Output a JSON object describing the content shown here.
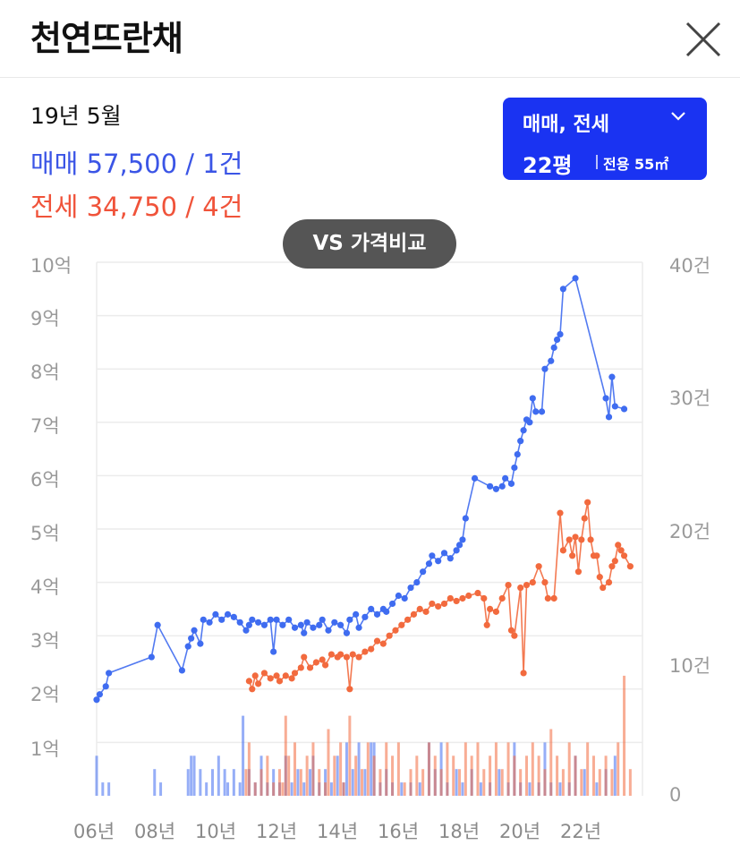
{
  "header": {
    "title": "천연뜨란채"
  },
  "info": {
    "date": "19년 5월",
    "sale": "매매 57,500 / 1건",
    "jeonse": "전세 34,750 / 4건"
  },
  "selector": {
    "type": "매매, 전세",
    "size": "22평",
    "area": "전용 55㎡"
  },
  "vs_button": "VS 가격비교",
  "colors": {
    "sale": "#3f6cf0",
    "jeonse": "#f26a3e",
    "accent": "#1a33f2"
  },
  "icons": {
    "close": "close-icon",
    "chevron": "chevron-down-icon"
  },
  "chart_data": {
    "type": "line",
    "x_tick_labels": [
      "06년",
      "08년",
      "10년",
      "12년",
      "14년",
      "16년",
      "18년",
      "20년",
      "22년"
    ],
    "y_left_ticks": [
      "10억",
      "9억",
      "8억",
      "7억",
      "6억",
      "5억",
      "4억",
      "3억",
      "2억",
      "1억"
    ],
    "y_right_ticks": [
      "40건",
      "30건",
      "20건",
      "10건",
      "0"
    ],
    "y_left_range": [
      0,
      10
    ],
    "y_right_range": [
      0,
      40
    ],
    "grid": true,
    "series": [
      {
        "key": "sale",
        "kind": "line",
        "points": [
          [
            2006.0,
            1.8
          ],
          [
            2006.1,
            1.9
          ],
          [
            2006.3,
            2.05
          ],
          [
            2006.4,
            2.3
          ],
          [
            2007.8,
            2.6
          ],
          [
            2008.0,
            3.2
          ],
          [
            2008.8,
            2.35
          ],
          [
            2009.0,
            2.8
          ],
          [
            2009.1,
            2.95
          ],
          [
            2009.2,
            3.1
          ],
          [
            2009.4,
            2.85
          ],
          [
            2009.5,
            3.3
          ],
          [
            2009.7,
            3.25
          ],
          [
            2009.9,
            3.4
          ],
          [
            2010.1,
            3.3
          ],
          [
            2010.3,
            3.4
          ],
          [
            2010.5,
            3.35
          ],
          [
            2010.7,
            3.25
          ],
          [
            2010.9,
            3.1
          ],
          [
            2011.0,
            3.2
          ],
          [
            2011.1,
            3.3
          ],
          [
            2011.3,
            3.25
          ],
          [
            2011.5,
            3.2
          ],
          [
            2011.7,
            3.3
          ],
          [
            2011.8,
            2.7
          ],
          [
            2011.9,
            3.3
          ],
          [
            2012.1,
            3.2
          ],
          [
            2012.3,
            3.3
          ],
          [
            2012.5,
            3.15
          ],
          [
            2012.7,
            3.2
          ],
          [
            2012.8,
            3.05
          ],
          [
            2012.9,
            3.25
          ],
          [
            2013.1,
            3.15
          ],
          [
            2013.3,
            3.2
          ],
          [
            2013.4,
            3.3
          ],
          [
            2013.6,
            3.1
          ],
          [
            2013.8,
            3.25
          ],
          [
            2014.0,
            3.2
          ],
          [
            2014.2,
            3.05
          ],
          [
            2014.3,
            3.3
          ],
          [
            2014.5,
            3.4
          ],
          [
            2014.6,
            3.15
          ],
          [
            2014.8,
            3.35
          ],
          [
            2015.0,
            3.5
          ],
          [
            2015.2,
            3.4
          ],
          [
            2015.4,
            3.5
          ],
          [
            2015.5,
            3.45
          ],
          [
            2015.7,
            3.6
          ],
          [
            2015.9,
            3.75
          ],
          [
            2016.1,
            3.7
          ],
          [
            2016.3,
            3.9
          ],
          [
            2016.5,
            4.0
          ],
          [
            2016.7,
            4.2
          ],
          [
            2016.9,
            4.35
          ],
          [
            2017.0,
            4.5
          ],
          [
            2017.2,
            4.4
          ],
          [
            2017.4,
            4.55
          ],
          [
            2017.6,
            4.45
          ],
          [
            2017.8,
            4.6
          ],
          [
            2017.9,
            4.7
          ],
          [
            2018.0,
            4.8
          ],
          [
            2018.1,
            5.2
          ],
          [
            2018.4,
            5.95
          ],
          [
            2018.9,
            5.8
          ],
          [
            2019.1,
            5.75
          ],
          [
            2019.3,
            5.8
          ],
          [
            2019.4,
            5.95
          ],
          [
            2019.6,
            5.85
          ],
          [
            2019.7,
            6.15
          ],
          [
            2019.8,
            6.4
          ],
          [
            2019.9,
            6.65
          ],
          [
            2020.0,
            6.85
          ],
          [
            2020.1,
            7.05
          ],
          [
            2020.2,
            7.0
          ],
          [
            2020.3,
            7.45
          ],
          [
            2020.4,
            7.2
          ],
          [
            2020.6,
            7.2
          ],
          [
            2020.7,
            8.0
          ],
          [
            2020.9,
            8.15
          ],
          [
            2021.0,
            8.4
          ],
          [
            2021.1,
            8.55
          ],
          [
            2021.2,
            8.65
          ],
          [
            2021.3,
            9.5
          ],
          [
            2021.7,
            9.7
          ],
          [
            2022.7,
            7.45
          ],
          [
            2022.8,
            7.1
          ],
          [
            2022.9,
            7.85
          ],
          [
            2023.0,
            7.3
          ],
          [
            2023.3,
            7.25
          ]
        ]
      },
      {
        "key": "jeonse",
        "kind": "line",
        "points": [
          [
            2011.0,
            2.15
          ],
          [
            2011.1,
            2.0
          ],
          [
            2011.2,
            2.25
          ],
          [
            2011.3,
            2.1
          ],
          [
            2011.5,
            2.3
          ],
          [
            2011.7,
            2.2
          ],
          [
            2011.9,
            2.25
          ],
          [
            2012.0,
            2.15
          ],
          [
            2012.2,
            2.25
          ],
          [
            2012.4,
            2.2
          ],
          [
            2012.5,
            2.3
          ],
          [
            2012.7,
            2.4
          ],
          [
            2012.8,
            2.6
          ],
          [
            2013.0,
            2.4
          ],
          [
            2013.2,
            2.5
          ],
          [
            2013.4,
            2.55
          ],
          [
            2013.5,
            2.45
          ],
          [
            2013.7,
            2.65
          ],
          [
            2013.9,
            2.6
          ],
          [
            2014.0,
            2.65
          ],
          [
            2014.2,
            2.6
          ],
          [
            2014.3,
            2.0
          ],
          [
            2014.4,
            2.65
          ],
          [
            2014.6,
            2.6
          ],
          [
            2014.8,
            2.7
          ],
          [
            2015.0,
            2.75
          ],
          [
            2015.2,
            2.9
          ],
          [
            2015.4,
            2.85
          ],
          [
            2015.6,
            3.0
          ],
          [
            2015.8,
            3.1
          ],
          [
            2016.0,
            3.2
          ],
          [
            2016.2,
            3.3
          ],
          [
            2016.4,
            3.4
          ],
          [
            2016.6,
            3.5
          ],
          [
            2016.8,
            3.45
          ],
          [
            2017.0,
            3.6
          ],
          [
            2017.2,
            3.55
          ],
          [
            2017.4,
            3.6
          ],
          [
            2017.6,
            3.7
          ],
          [
            2017.8,
            3.65
          ],
          [
            2018.0,
            3.7
          ],
          [
            2018.2,
            3.75
          ],
          [
            2018.5,
            3.8
          ],
          [
            2018.7,
            3.7
          ],
          [
            2018.8,
            3.2
          ],
          [
            2018.9,
            3.5
          ],
          [
            2019.1,
            3.45
          ],
          [
            2019.3,
            3.7
          ],
          [
            2019.5,
            3.95
          ],
          [
            2019.6,
            3.1
          ],
          [
            2019.7,
            3.0
          ],
          [
            2019.9,
            3.9
          ],
          [
            2020.0,
            2.3
          ],
          [
            2020.1,
            3.95
          ],
          [
            2020.3,
            4.0
          ],
          [
            2020.5,
            4.3
          ],
          [
            2020.7,
            4.0
          ],
          [
            2020.8,
            3.7
          ],
          [
            2021.0,
            3.7
          ],
          [
            2021.2,
            5.3
          ],
          [
            2021.3,
            4.6
          ],
          [
            2021.5,
            4.8
          ],
          [
            2021.6,
            4.5
          ],
          [
            2021.7,
            4.85
          ],
          [
            2021.8,
            4.2
          ],
          [
            2021.9,
            4.8
          ],
          [
            2022.0,
            5.2
          ],
          [
            2022.1,
            5.5
          ],
          [
            2022.2,
            4.8
          ],
          [
            2022.3,
            4.5
          ],
          [
            2022.4,
            4.5
          ],
          [
            2022.5,
            4.1
          ],
          [
            2022.6,
            3.9
          ],
          [
            2022.8,
            4.0
          ],
          [
            2022.9,
            4.3
          ],
          [
            2023.0,
            4.4
          ],
          [
            2023.1,
            4.7
          ],
          [
            2023.2,
            4.6
          ],
          [
            2023.3,
            4.5
          ],
          [
            2023.5,
            4.3
          ]
        ]
      },
      {
        "key": "sale_volume",
        "kind": "bar",
        "points": [
          [
            2006.0,
            3
          ],
          [
            2006.2,
            1
          ],
          [
            2006.4,
            1
          ],
          [
            2007.9,
            2
          ],
          [
            2008.1,
            1
          ],
          [
            2009.0,
            2
          ],
          [
            2009.1,
            3
          ],
          [
            2009.2,
            3
          ],
          [
            2009.4,
            2
          ],
          [
            2009.6,
            1
          ],
          [
            2009.8,
            2
          ],
          [
            2010.0,
            3
          ],
          [
            2010.2,
            2
          ],
          [
            2010.3,
            1
          ],
          [
            2010.5,
            2
          ],
          [
            2010.7,
            1
          ],
          [
            2010.8,
            6
          ],
          [
            2011.0,
            2
          ],
          [
            2011.2,
            1
          ],
          [
            2011.4,
            3
          ],
          [
            2011.6,
            1
          ],
          [
            2011.8,
            2
          ],
          [
            2012.0,
            1
          ],
          [
            2012.2,
            3
          ],
          [
            2012.4,
            1
          ],
          [
            2012.6,
            2
          ],
          [
            2012.8,
            1
          ],
          [
            2013.0,
            2
          ],
          [
            2013.1,
            3
          ],
          [
            2013.3,
            1
          ],
          [
            2013.5,
            2
          ],
          [
            2013.7,
            1
          ],
          [
            2013.9,
            3
          ],
          [
            2014.1,
            1
          ],
          [
            2014.2,
            4
          ],
          [
            2014.4,
            2
          ],
          [
            2014.6,
            4
          ],
          [
            2014.8,
            2
          ],
          [
            2015.0,
            4
          ],
          [
            2015.1,
            4
          ],
          [
            2015.3,
            1
          ],
          [
            2015.5,
            2
          ],
          [
            2015.7,
            1
          ],
          [
            2016.0,
            1
          ],
          [
            2016.3,
            1
          ],
          [
            2016.6,
            1
          ],
          [
            2016.9,
            4
          ],
          [
            2017.1,
            2
          ],
          [
            2017.3,
            4
          ],
          [
            2017.5,
            1
          ],
          [
            2017.8,
            2
          ],
          [
            2018.0,
            1
          ],
          [
            2018.3,
            2
          ],
          [
            2018.6,
            1
          ],
          [
            2018.9,
            1
          ],
          [
            2019.2,
            2
          ],
          [
            2019.5,
            1
          ],
          [
            2019.7,
            4
          ],
          [
            2019.9,
            1
          ],
          [
            2020.2,
            1
          ],
          [
            2020.5,
            1
          ],
          [
            2020.7,
            4
          ],
          [
            2020.9,
            1
          ],
          [
            2021.2,
            1
          ],
          [
            2021.5,
            1
          ],
          [
            2021.7,
            3
          ],
          [
            2022.0,
            2
          ],
          [
            2022.4,
            1
          ],
          [
            2022.7,
            2
          ],
          [
            2023.0,
            3
          ]
        ]
      },
      {
        "key": "jeonse_volume",
        "kind": "bar",
        "points": [
          [
            2010.9,
            2
          ],
          [
            2011.0,
            4
          ],
          [
            2011.2,
            1
          ],
          [
            2011.4,
            2
          ],
          [
            2011.6,
            3
          ],
          [
            2011.8,
            1
          ],
          [
            2012.0,
            2
          ],
          [
            2012.1,
            1
          ],
          [
            2012.2,
            6
          ],
          [
            2012.3,
            3
          ],
          [
            2012.5,
            4
          ],
          [
            2012.7,
            2
          ],
          [
            2012.9,
            3
          ],
          [
            2013.1,
            4
          ],
          [
            2013.3,
            2
          ],
          [
            2013.5,
            1
          ],
          [
            2013.6,
            5
          ],
          [
            2013.8,
            3
          ],
          [
            2014.0,
            4
          ],
          [
            2014.1,
            1
          ],
          [
            2014.3,
            6
          ],
          [
            2014.5,
            3
          ],
          [
            2014.7,
            2
          ],
          [
            2014.9,
            4
          ],
          [
            2015.1,
            3
          ],
          [
            2015.3,
            2
          ],
          [
            2015.5,
            4
          ],
          [
            2015.7,
            3
          ],
          [
            2015.9,
            4
          ],
          [
            2016.1,
            1
          ],
          [
            2016.3,
            2
          ],
          [
            2016.5,
            3
          ],
          [
            2016.7,
            2
          ],
          [
            2016.9,
            4
          ],
          [
            2017.1,
            3
          ],
          [
            2017.3,
            2
          ],
          [
            2017.5,
            4
          ],
          [
            2017.7,
            3
          ],
          [
            2017.9,
            2
          ],
          [
            2018.1,
            4
          ],
          [
            2018.3,
            3
          ],
          [
            2018.5,
            4
          ],
          [
            2018.7,
            2
          ],
          [
            2018.9,
            3
          ],
          [
            2019.1,
            4
          ],
          [
            2019.3,
            2
          ],
          [
            2019.5,
            4
          ],
          [
            2019.7,
            3
          ],
          [
            2019.9,
            2
          ],
          [
            2020.1,
            3
          ],
          [
            2020.3,
            4
          ],
          [
            2020.5,
            3
          ],
          [
            2020.7,
            2
          ],
          [
            2020.9,
            5
          ],
          [
            2021.1,
            3
          ],
          [
            2021.3,
            2
          ],
          [
            2021.5,
            4
          ],
          [
            2021.7,
            3
          ],
          [
            2021.9,
            2
          ],
          [
            2022.1,
            4
          ],
          [
            2022.3,
            3
          ],
          [
            2022.5,
            2
          ],
          [
            2022.7,
            3
          ],
          [
            2022.9,
            2
          ],
          [
            2023.1,
            4
          ],
          [
            2023.3,
            9
          ],
          [
            2023.5,
            2
          ]
        ]
      }
    ]
  }
}
